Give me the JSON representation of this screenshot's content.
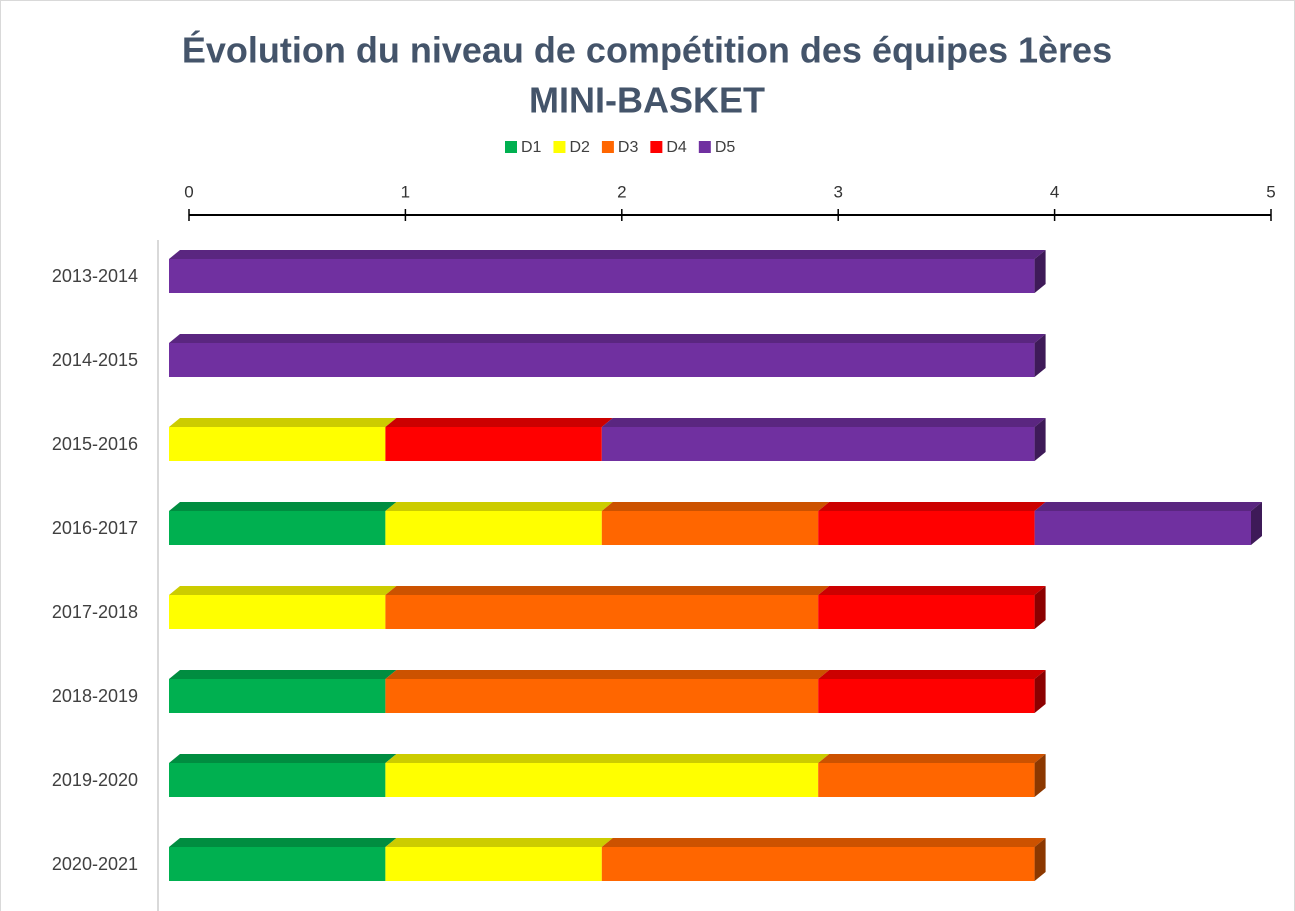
{
  "chart_data": {
    "type": "stacked-bar-horizontal",
    "title": [
      "Évolution du niveau de compétition des équipes 1ères",
      "MINI-BASKET"
    ],
    "categories": [
      "2013-2014",
      "2014-2015",
      "2015-2016",
      "2016-2017",
      "2017-2018",
      "2018-2019",
      "2019-2020",
      "2020-2021"
    ],
    "series": [
      {
        "name": "D1",
        "color": "#00b050",
        "values": [
          0,
          0,
          0,
          1,
          0,
          1,
          1,
          1
        ]
      },
      {
        "name": "D2",
        "color": "#ffff00",
        "values": [
          0,
          0,
          1,
          1,
          1,
          0,
          2,
          1
        ]
      },
      {
        "name": "D3",
        "color": "#ff6600",
        "values": [
          0,
          0,
          0,
          1,
          2,
          2,
          1,
          2
        ]
      },
      {
        "name": "D4",
        "color": "#ff0000",
        "values": [
          0,
          0,
          1,
          1,
          1,
          1,
          0,
          0
        ]
      },
      {
        "name": "D5",
        "color": "#7030a0",
        "values": [
          4,
          4,
          2,
          1,
          0,
          0,
          0,
          0
        ]
      }
    ],
    "xlim": [
      0,
      5
    ],
    "xticks": [
      0,
      1,
      2,
      3,
      4,
      5
    ],
    "legend": "top"
  }
}
